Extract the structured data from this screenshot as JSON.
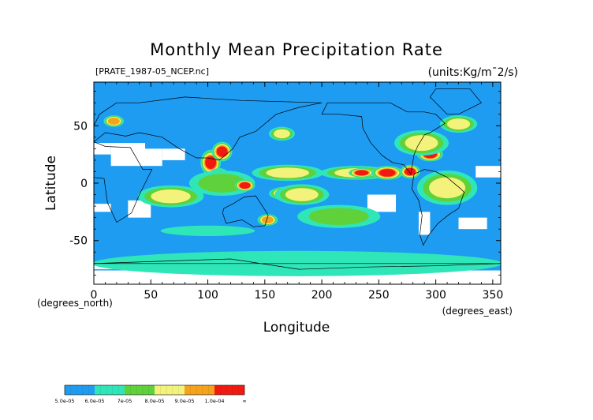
{
  "chart_data": {
    "type": "heatmap",
    "title": "Monthly Mean Precipitation Rate",
    "file_label": "[PRATE_1987-05_NCEP.nc]",
    "units_label": "(units:Kg/m¯2/s)",
    "xlabel": "Longitude",
    "ylabel": "Latitude",
    "x_unit_label": "(degrees_east)",
    "y_unit_label": "(degrees_north)",
    "xlim": [
      0,
      357
    ],
    "ylim": [
      -88,
      88
    ],
    "x_ticks": [
      0,
      50,
      100,
      150,
      200,
      250,
      300,
      350
    ],
    "y_ticks": [
      50,
      0,
      -50
    ],
    "colorbar": {
      "labels": [
        "5.0e-05",
        "6.0e-05",
        "7e-05",
        "8.0e-05",
        "9.0e-05",
        "1.0e-04",
        "∞"
      ],
      "colors": [
        "#1e9cf2",
        "#2fe6b8",
        "#5fd13a",
        "#f3f27a",
        "#f6a21a",
        "#f21a10"
      ]
    },
    "background_color": "#1e9cf2",
    "missing_color": "#ffffff",
    "features": [
      {
        "kind": "band",
        "lon": [
          155,
          185
        ],
        "lat": [
          -14,
          -4
        ],
        "level": 5
      },
      {
        "kind": "band",
        "lon": [
          160,
          205
        ],
        "lat": [
          -18,
          -2
        ],
        "level": 3
      },
      {
        "kind": "band",
        "lon": [
          45,
          80
        ],
        "lat": [
          -16,
          -8
        ],
        "level": 5
      },
      {
        "kind": "band",
        "lon": [
          40,
          95
        ],
        "lat": [
          -20,
          -3
        ],
        "level": 3
      },
      {
        "kind": "blob",
        "lon": [
          95,
          110
        ],
        "lat": [
          8,
          28
        ],
        "level": 5
      },
      {
        "kind": "blob",
        "lon": [
          105,
          120
        ],
        "lat": [
          20,
          35
        ],
        "level": 5
      },
      {
        "kind": "blob",
        "lon": [
          100,
          120
        ],
        "lat": [
          -8,
          12
        ],
        "level": 4
      },
      {
        "kind": "band",
        "lon": [
          85,
          140
        ],
        "lat": [
          -10,
          10
        ],
        "level": 2
      },
      {
        "kind": "blob",
        "lon": [
          125,
          140
        ],
        "lat": [
          -6,
          2
        ],
        "level": 5
      },
      {
        "kind": "blob",
        "lon": [
          150,
          170
        ],
        "lat": [
          5,
          12
        ],
        "level": 5
      },
      {
        "kind": "band",
        "lon": [
          140,
          200
        ],
        "lat": [
          3,
          15
        ],
        "level": 3
      },
      {
        "kind": "band",
        "lon": [
          200,
          260
        ],
        "lat": [
          4,
          14
        ],
        "level": 3
      },
      {
        "kind": "blob",
        "lon": [
          225,
          245
        ],
        "lat": [
          6,
          12
        ],
        "level": 5
      },
      {
        "kind": "blob",
        "lon": [
          245,
          270
        ],
        "lat": [
          4,
          14
        ],
        "level": 5
      },
      {
        "kind": "blob",
        "lon": [
          270,
          285
        ],
        "lat": [
          5,
          15
        ],
        "level": 5
      },
      {
        "kind": "blob",
        "lon": [
          290,
          325
        ],
        "lat": [
          -12,
          6
        ],
        "level": 5
      },
      {
        "kind": "band",
        "lon": [
          285,
          335
        ],
        "lat": [
          -18,
          10
        ],
        "level": 3
      },
      {
        "kind": "blob",
        "lon": [
          272,
          290
        ],
        "lat": [
          28,
          40
        ],
        "level": 5
      },
      {
        "kind": "blob",
        "lon": [
          285,
          305
        ],
        "lat": [
          20,
          30
        ],
        "level": 5
      },
      {
        "kind": "blob",
        "lon": [
          265,
          310
        ],
        "lat": [
          25,
          45
        ],
        "level": 3
      },
      {
        "kind": "blob",
        "lon": [
          310,
          330
        ],
        "lat": [
          50,
          58
        ],
        "level": 5
      },
      {
        "kind": "blob",
        "lon": [
          305,
          335
        ],
        "lat": [
          45,
          58
        ],
        "level": 3
      },
      {
        "kind": "blob",
        "lon": [
          10,
          25
        ],
        "lat": [
          50,
          58
        ],
        "level": 4
      },
      {
        "kind": "blob",
        "lon": [
          145,
          160
        ],
        "lat": [
          -36,
          -28
        ],
        "level": 4
      },
      {
        "kind": "band",
        "lon": [
          180,
          250
        ],
        "lat": [
          -38,
          -20
        ],
        "level": 2
      },
      {
        "kind": "band",
        "lon": [
          60,
          140
        ],
        "lat": [
          -45,
          -38
        ],
        "level": 1
      },
      {
        "kind": "band",
        "lon": [
          0,
          357
        ],
        "lat": [
          -80,
          -60
        ],
        "level": 1
      },
      {
        "kind": "blob",
        "lon": [
          155,
          175
        ],
        "lat": [
          38,
          48
        ],
        "level": 3
      }
    ],
    "missing_regions": [
      {
        "lon": [
          15,
          45
        ],
        "lat": [
          15,
          35
        ]
      },
      {
        "lon": [
          42,
          60
        ],
        "lat": [
          15,
          30
        ]
      },
      {
        "lon": [
          60,
          80
        ],
        "lat": [
          20,
          30
        ]
      },
      {
        "lon": [
          0,
          15
        ],
        "lat": [
          25,
          35
        ]
      },
      {
        "lon": [
          30,
          50
        ],
        "lat": [
          -30,
          -15
        ]
      },
      {
        "lon": [
          0,
          15
        ],
        "lat": [
          -25,
          -18
        ]
      },
      {
        "lon": [
          240,
          265
        ],
        "lat": [
          -25,
          -10
        ]
      },
      {
        "lon": [
          285,
          295
        ],
        "lat": [
          -45,
          -25
        ]
      },
      {
        "lon": [
          335,
          357
        ],
        "lat": [
          5,
          15
        ]
      },
      {
        "lon": [
          320,
          345
        ],
        "lat": [
          -40,
          -30
        ]
      },
      {
        "lon": [
          0,
          357
        ],
        "lat": [
          -88,
          -76
        ]
      },
      {
        "lon": [
          0,
          35
        ],
        "lat": [
          -75,
          -70
        ]
      },
      {
        "lon": [
          140,
          160
        ],
        "lat": [
          -75,
          -70
        ]
      },
      {
        "lon": [
          200,
          235
        ],
        "lat": [
          -75,
          -70
        ]
      },
      {
        "lon": [
          290,
          340
        ],
        "lat": [
          -75,
          -70
        ]
      }
    ]
  }
}
